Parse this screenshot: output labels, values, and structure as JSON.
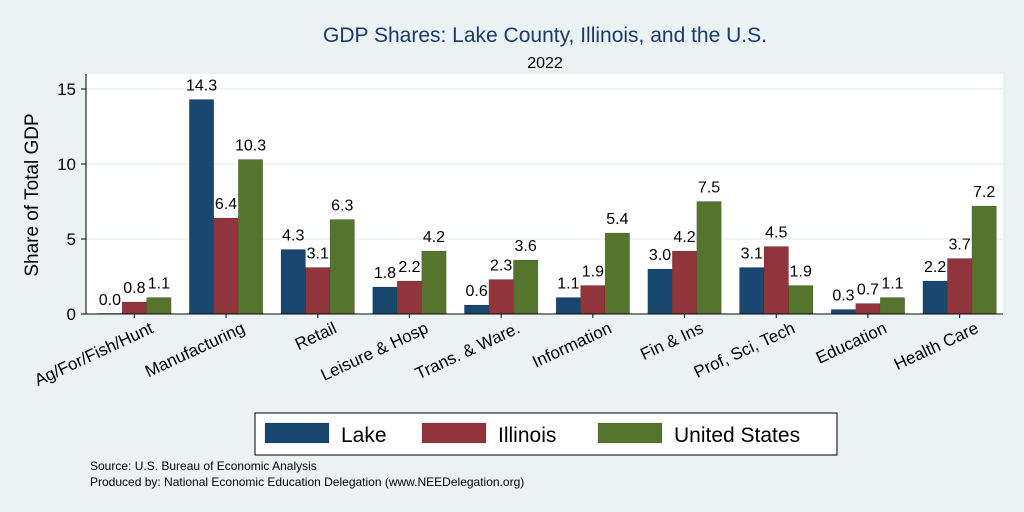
{
  "chart_data": {
    "type": "bar",
    "title": "GDP Shares: Lake County, Illinois, and the U.S.",
    "subtitle": "2022",
    "xlabel": "",
    "ylabel": "Share of Total GDP",
    "ylim": [
      0,
      16
    ],
    "yticks": [
      0,
      5,
      10,
      15
    ],
    "grid": true,
    "legend_position": "bottom",
    "categories": [
      "Ag/For/Fish/Hunt",
      "Manufacturing",
      "Retail",
      "Leisure & Hosp",
      "Trans. & Ware.",
      "Information",
      "Fin & Ins",
      "Prof, Sci, Tech",
      "Education",
      "Health Care"
    ],
    "series": [
      {
        "name": "Lake",
        "color": "#1a476f",
        "values": [
          0.0,
          14.3,
          4.3,
          1.8,
          0.6,
          1.1,
          3.0,
          3.1,
          0.3,
          2.2
        ]
      },
      {
        "name": "Illinois",
        "color": "#90353b",
        "values": [
          0.8,
          6.4,
          3.1,
          2.2,
          2.3,
          1.9,
          4.2,
          4.5,
          0.7,
          3.7
        ]
      },
      {
        "name": "United States",
        "color": "#55752f",
        "values": [
          1.1,
          10.3,
          6.3,
          4.2,
          3.6,
          5.4,
          7.5,
          1.9,
          1.1,
          7.2
        ]
      }
    ]
  },
  "source_line": "Source: U.S. Bureau of Economic Analysis",
  "produced_line": "Produced by: National Economic Education Delegation (www.NEEDelegation.org)"
}
